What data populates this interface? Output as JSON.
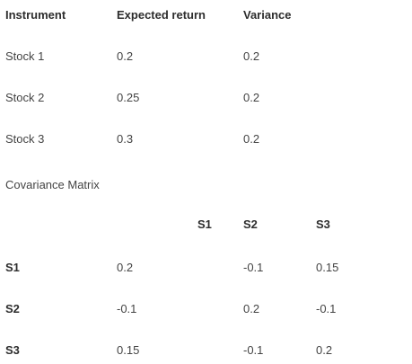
{
  "instrument_table": {
    "headers": {
      "instrument": "Instrument",
      "expected_return": "Expected return",
      "variance": "Variance"
    },
    "rows": [
      {
        "instrument": "Stock 1",
        "expected_return": "0.2",
        "variance": "0.2"
      },
      {
        "instrument": "Stock 2",
        "expected_return": "0.25",
        "variance": "0.2"
      },
      {
        "instrument": "Stock 3",
        "expected_return": "0.3",
        "variance": "0.2"
      }
    ]
  },
  "covariance": {
    "title": "Covariance Matrix",
    "columns": [
      "S1",
      "S2",
      "S3"
    ],
    "rows": [
      {
        "label": "S1",
        "values": [
          "0.2",
          "-0.1",
          "0.15"
        ]
      },
      {
        "label": "S2",
        "values": [
          "-0.1",
          "0.2",
          "-0.1"
        ]
      },
      {
        "label": "S3",
        "values": [
          "0.15",
          "-0.1",
          "0.2"
        ]
      }
    ]
  }
}
